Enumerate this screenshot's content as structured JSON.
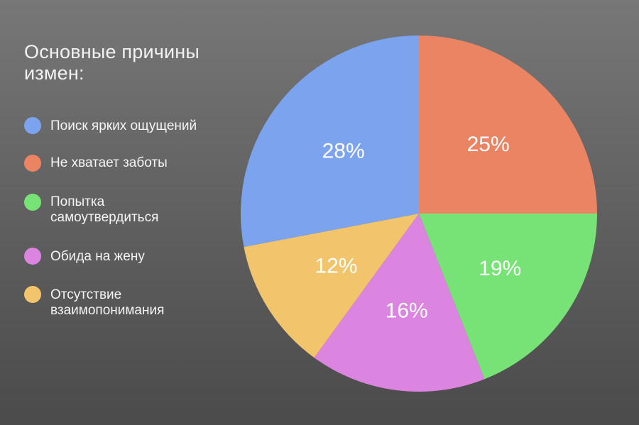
{
  "chart_data": {
    "type": "pie",
    "title": "Основные причины измен:",
    "slices": [
      {
        "label": "Не хватает заботы",
        "value": 25,
        "display": "25%",
        "color": "#ea8463"
      },
      {
        "label": "Попытка самоутвердиться",
        "value": 19,
        "display": "19%",
        "color": "#77e276"
      },
      {
        "label": "Обида на жену",
        "value": 16,
        "display": "16%",
        "color": "#dc85e0"
      },
      {
        "label": "Отсутствие взаимопонимания",
        "value": 12,
        "display": "12%",
        "color": "#f2c46c"
      },
      {
        "label": "Поиск ярких ощущений",
        "value": 28,
        "display": "28%",
        "color": "#7ba3ee"
      }
    ],
    "legend": {
      "position": "left",
      "items": [
        {
          "label": "Поиск ярких ощущений",
          "color": "#7ba3ee"
        },
        {
          "label": "Не хватает заботы",
          "color": "#ea8463"
        },
        {
          "label": "Попытка\nсамоутвердиться",
          "color": "#77e276"
        },
        {
          "label": "Обида на жену",
          "color": "#dc85e0"
        },
        {
          "label": "Отсутствие\nвзаимопонимания",
          "color": "#f2c46c"
        }
      ]
    }
  }
}
